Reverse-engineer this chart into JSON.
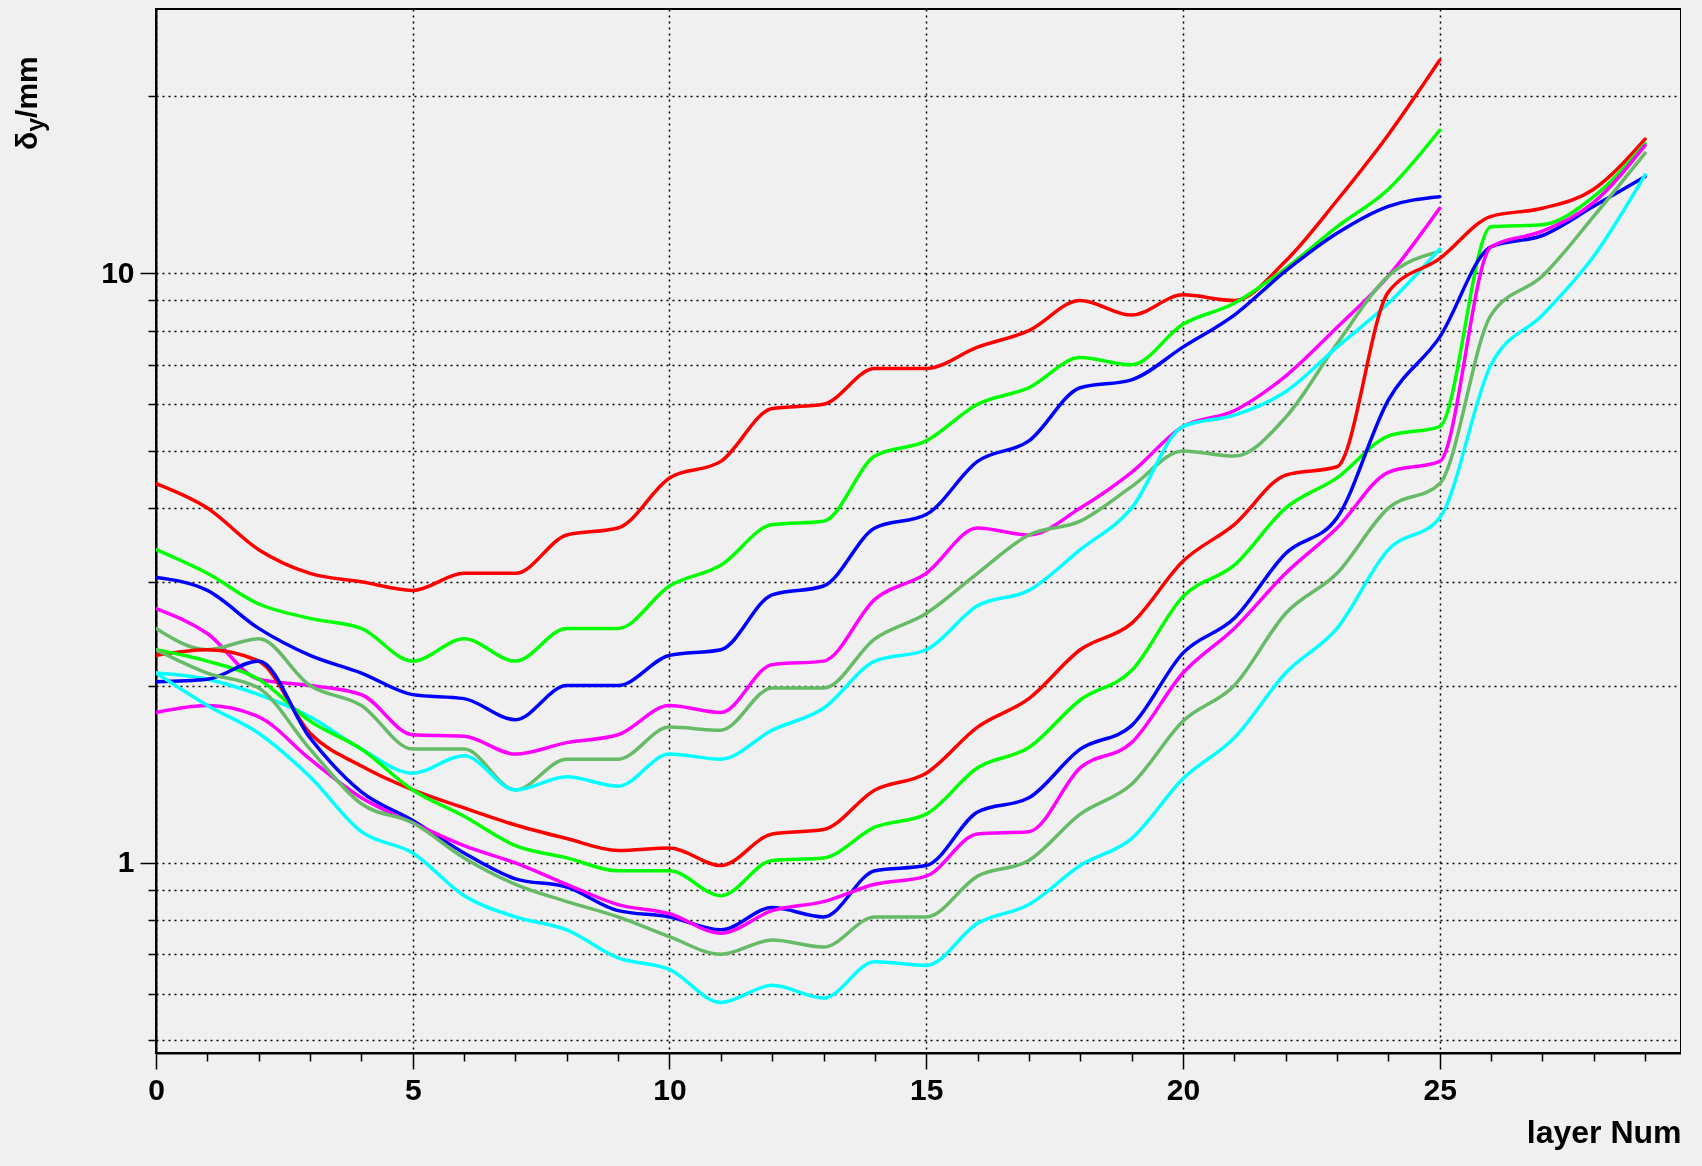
{
  "chart_data": {
    "type": "line",
    "xlabel": "layer Num",
    "ylabel": "δ$_{y}$/mm",
    "log": "y",
    "grid": true,
    "line_style": "solid",
    "xlim": [
      0,
      29.7
    ],
    "ylim": [
      0.476,
      28.1
    ],
    "xticks": [
      0,
      {
        "value": 1,
        "label": null
      },
      {
        "value": 2,
        "label": null
      },
      {
        "value": 3,
        "label": null
      },
      {
        "value": 4,
        "label": null
      },
      5,
      {
        "value": 6,
        "label": null
      },
      {
        "value": 7,
        "label": null
      },
      {
        "value": 8,
        "label": null
      },
      {
        "value": 9,
        "label": null
      },
      10,
      {
        "value": 11,
        "label": null
      },
      {
        "value": 12,
        "label": null
      },
      {
        "value": 13,
        "label": null
      },
      {
        "value": 14,
        "label": null
      },
      15,
      {
        "value": 16,
        "label": null
      },
      {
        "value": 17,
        "label": null
      },
      {
        "value": 18,
        "label": null
      },
      {
        "value": 19,
        "label": null
      },
      20,
      {
        "value": 21,
        "label": null
      },
      {
        "value": 22,
        "label": null
      },
      {
        "value": 23,
        "label": null
      },
      {
        "value": 24,
        "label": null
      },
      25,
      {
        "value": 26,
        "label": null
      },
      {
        "value": 27,
        "label": null
      },
      {
        "value": 28,
        "label": null
      },
      {
        "value": 29,
        "label": null
      }
    ],
    "yticks": [
      {
        "value": 0.5,
        "label": null
      },
      {
        "value": 0.6,
        "label": null
      },
      {
        "value": 0.7,
        "label": null
      },
      {
        "value": 0.8,
        "label": null
      },
      {
        "value": 0.9,
        "label": null
      },
      1,
      {
        "value": 2,
        "label": null
      },
      {
        "value": 3,
        "label": null
      },
      {
        "value": 4,
        "label": null
      },
      {
        "value": 5,
        "label": null
      },
      {
        "value": 6,
        "label": null
      },
      {
        "value": 7,
        "label": null
      },
      {
        "value": 8,
        "label": null
      },
      {
        "value": 9,
        "label": null
      },
      10,
      {
        "value": 20,
        "label": null
      }
    ],
    "x": [
      0,
      1,
      2,
      3,
      4,
      5,
      6,
      7,
      8,
      9,
      10,
      11,
      12,
      13,
      14,
      15,
      16,
      17,
      18,
      19,
      20,
      21,
      22,
      23,
      24,
      25,
      26,
      27,
      28,
      29
    ],
    "series": [
      {
        "color": "#ff0000",
        "values": [
          4.4,
          4.0,
          3.4,
          3.1,
          3.0,
          2.9,
          3.1,
          3.1,
          3.6,
          3.7,
          4.5,
          4.8,
          5.9,
          6.0,
          6.9,
          6.9,
          7.5,
          8.0,
          9.0,
          8.5,
          9.2,
          9.0,
          10.5,
          13.3,
          17.2,
          23,
          null,
          null,
          null,
          null
        ]
      },
      {
        "color": "#00ff00",
        "values": [
          3.4,
          3.1,
          2.75,
          2.6,
          2.5,
          2.2,
          2.4,
          2.2,
          2.5,
          2.5,
          2.95,
          3.2,
          3.75,
          3.8,
          4.9,
          5.2,
          6.0,
          6.4,
          7.2,
          7.0,
          8.2,
          8.9,
          10.2,
          12,
          13.9,
          17.5,
          null,
          null,
          null,
          null
        ]
      },
      {
        "color": "#0000ff",
        "values": [
          3.05,
          2.9,
          2.5,
          2.25,
          2.1,
          1.93,
          1.9,
          1.75,
          2.0,
          2.0,
          2.25,
          2.3,
          2.85,
          2.95,
          3.7,
          3.9,
          4.8,
          5.2,
          6.4,
          6.6,
          7.5,
          8.5,
          10.1,
          11.7,
          13,
          13.5,
          null,
          null,
          null,
          null
        ]
      },
      {
        "color": "#ff00ff",
        "values": [
          2.7,
          2.45,
          2.05,
          2.0,
          1.93,
          1.65,
          1.64,
          1.53,
          1.6,
          1.65,
          1.85,
          1.8,
          2.17,
          2.2,
          2.8,
          3.1,
          3.7,
          3.6,
          4.0,
          4.6,
          5.5,
          5.85,
          6.7,
          8.1,
          9.9,
          12.9,
          null,
          null,
          null,
          null
        ]
      },
      {
        "color": "#66bb66",
        "values": [
          2.5,
          2.3,
          2.4,
          2.0,
          1.85,
          1.56,
          1.56,
          1.33,
          1.5,
          1.5,
          1.7,
          1.68,
          1.98,
          1.98,
          2.4,
          2.65,
          3.1,
          3.6,
          3.8,
          4.35,
          5.0,
          4.9,
          5.7,
          7.6,
          9.9,
          10.9,
          null,
          null,
          null,
          null
        ]
      },
      {
        "color": "#00ffff",
        "values": [
          2.1,
          2.05,
          1.93,
          1.77,
          1.56,
          1.42,
          1.52,
          1.33,
          1.4,
          1.35,
          1.53,
          1.5,
          1.68,
          1.83,
          2.2,
          2.3,
          2.73,
          2.9,
          3.4,
          4.0,
          5.5,
          5.75,
          6.3,
          7.5,
          8.9,
          11,
          null,
          null,
          null,
          null
        ]
      },
      {
        "color": "#ff0000",
        "values": [
          2.25,
          2.3,
          2.2,
          1.66,
          1.46,
          1.33,
          1.24,
          1.16,
          1.1,
          1.05,
          1.06,
          0.99,
          1.12,
          1.14,
          1.33,
          1.42,
          1.7,
          1.9,
          2.3,
          2.55,
          3.25,
          3.75,
          4.55,
          4.7,
          9.3,
          10.6,
          12.5,
          12.9,
          13.9,
          16.9
        ]
      },
      {
        "color": "#00ff00",
        "values": [
          2.3,
          2.2,
          2.05,
          1.74,
          1.56,
          1.33,
          1.2,
          1.07,
          1.02,
          0.97,
          0.97,
          0.88,
          1.01,
          1.02,
          1.15,
          1.21,
          1.45,
          1.57,
          1.89,
          2.12,
          2.83,
          3.2,
          4.0,
          4.5,
          5.3,
          5.5,
          12,
          12.1,
          13.5,
          16.6
        ]
      },
      {
        "color": "#0000ff",
        "values": [
          2.03,
          2.05,
          2.2,
          1.63,
          1.32,
          1.18,
          1.04,
          0.94,
          0.91,
          0.83,
          0.81,
          0.77,
          0.84,
          0.81,
          0.97,
          0.99,
          1.22,
          1.29,
          1.56,
          1.71,
          2.27,
          2.6,
          3.35,
          3.85,
          6.1,
          7.8,
          11.1,
          11.6,
          13,
          14.6
        ]
      },
      {
        "color": "#ff00ff",
        "values": [
          1.8,
          1.85,
          1.77,
          1.5,
          1.29,
          1.17,
          1.07,
          1.0,
          0.92,
          0.85,
          0.82,
          0.76,
          0.83,
          0.86,
          0.92,
          0.95,
          1.12,
          1.13,
          1.45,
          1.6,
          2.1,
          2.5,
          3.1,
          3.7,
          4.6,
          4.8,
          11.1,
          11.8,
          13.2,
          16.5
        ]
      },
      {
        "color": "#66bb66",
        "values": [
          2.3,
          2.1,
          1.98,
          1.56,
          1.26,
          1.17,
          1.02,
          0.92,
          0.86,
          0.81,
          0.75,
          0.7,
          0.74,
          0.72,
          0.81,
          0.81,
          0.95,
          1.01,
          1.21,
          1.36,
          1.74,
          2.0,
          2.65,
          3.1,
          4.0,
          4.4,
          8.5,
          9.9,
          12.5,
          16
        ]
      },
      {
        "color": "#00ffff",
        "values": [
          2.1,
          1.85,
          1.66,
          1.4,
          1.13,
          1.04,
          0.88,
          0.81,
          0.77,
          0.69,
          0.66,
          0.58,
          0.62,
          0.59,
          0.68,
          0.67,
          0.79,
          0.85,
          0.99,
          1.1,
          1.39,
          1.63,
          2.1,
          2.5,
          3.4,
          3.85,
          7.0,
          8.5,
          10.7,
          14.7
        ]
      }
    ]
  }
}
